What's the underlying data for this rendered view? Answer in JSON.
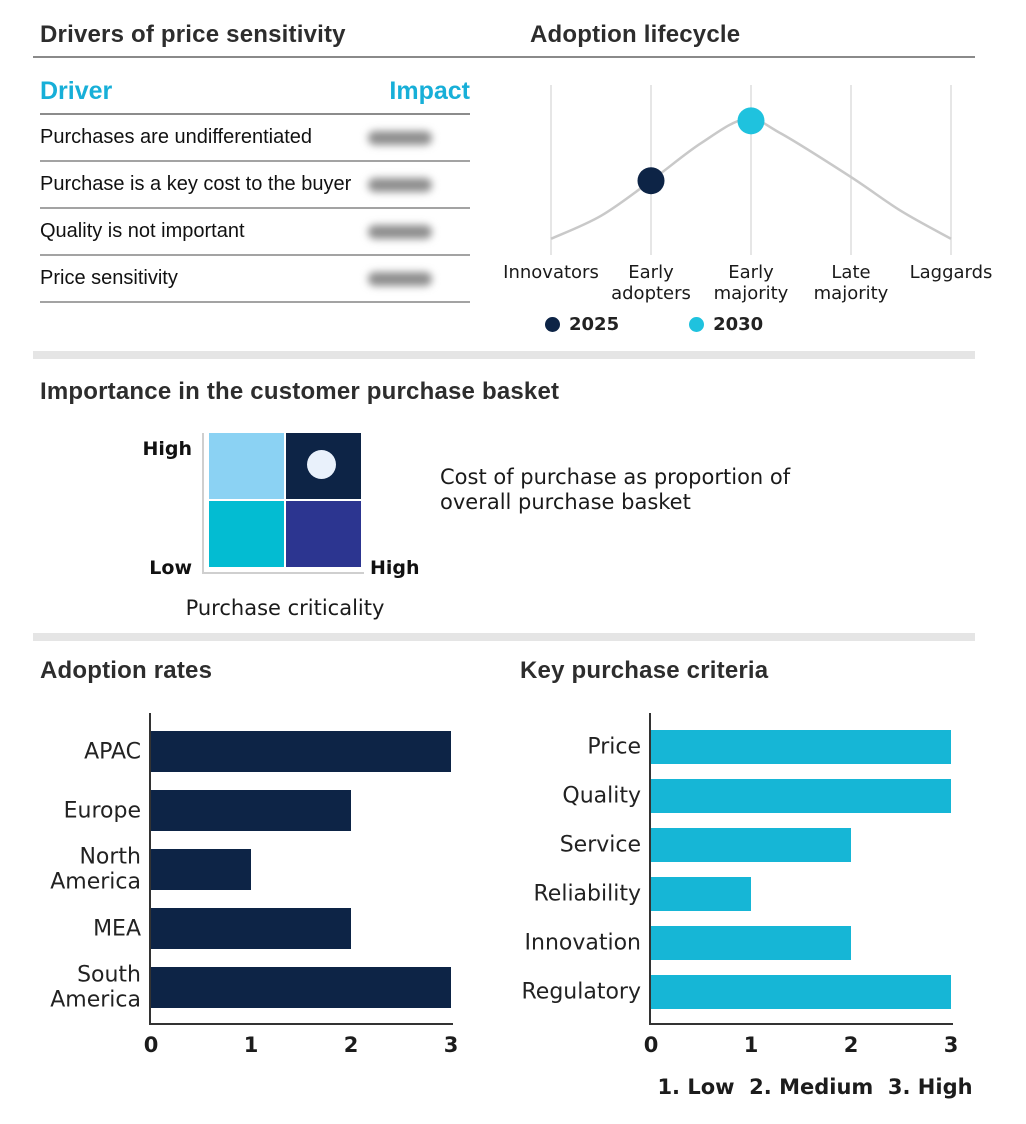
{
  "colors": {
    "navy": "#0d2446",
    "cyan": "#16b6d6",
    "cyan_dot": "#1fc2de",
    "accent_header": "#17afd8",
    "matrix_light_blue": "#8bd2f3",
    "matrix_teal": "#03bcd2",
    "matrix_indigo": "#2c3590",
    "matrix_marker": "#e9f1fb",
    "curve_gray": "#c9c9c9",
    "gridline_gray": "#dddddd",
    "divider_gray": "#e5e5e5",
    "title_text": "#2d2d2d"
  },
  "drivers_panel": {
    "title": "Drivers of price sensitivity",
    "columns": [
      "Driver",
      "Impact"
    ],
    "rows": [
      {
        "driver": "Purchases are undifferentiated",
        "impact": "",
        "impact_redacted": true
      },
      {
        "driver": "Purchase is a key cost to the buyer",
        "impact": "",
        "impact_redacted": true
      },
      {
        "driver": "Quality is not important",
        "impact": "",
        "impact_redacted": true
      },
      {
        "driver": "Price sensitivity",
        "impact": "",
        "impact_redacted": true
      }
    ]
  },
  "lifecycle_panel": {
    "title": "Adoption lifecycle",
    "legend": [
      {
        "label": "2025",
        "color": "#0d2446"
      },
      {
        "label": "2030",
        "color": "#1fc2de"
      }
    ]
  },
  "importance_panel": {
    "title": "Importance in the customer purchase basket",
    "y_axis_top": "High",
    "y_axis_bottom": "Low",
    "x_axis_right": "High",
    "x_axis_label": "Purchase criticality",
    "annotation": "Cost of purchase as proportion of overall purchase basket"
  },
  "adoption_panel": {
    "title": "Adoption rates"
  },
  "criteria_panel": {
    "title": "Key purchase criteria",
    "footnote": "1. Low  2. Medium  3. High"
  },
  "chart_data": [
    {
      "id": "lifecycle",
      "type": "line",
      "title": "Adoption lifecycle",
      "categories": [
        "Innovators",
        "Early adopters",
        "Early majority",
        "Late majority",
        "Laggards"
      ],
      "grid": "vertical gridline at each category",
      "legend_position": "bottom-left",
      "curve_points": [
        [
          0,
          1
        ],
        [
          0.5,
          20
        ],
        [
          1,
          49
        ],
        [
          1.5,
          80
        ],
        [
          1.95,
          100
        ],
        [
          2.3,
          88
        ],
        [
          3,
          52
        ],
        [
          3.5,
          24
        ],
        [
          4,
          1
        ]
      ],
      "markers": [
        {
          "series": "2025",
          "category_index": 1,
          "category": "Early adopters",
          "height_pct": 49,
          "color": "#0d2446"
        },
        {
          "series": "2030",
          "category_index": 2,
          "category": "Early majority",
          "height_pct": 98.5,
          "color": "#1fc2de"
        }
      ]
    },
    {
      "id": "importance-matrix",
      "type": "heatmap",
      "title": "Importance in the customer purchase basket",
      "x_axis": {
        "label": "Purchase criticality",
        "max_label": "High"
      },
      "y_axis": {
        "min_label": "Low",
        "max_label": "High"
      },
      "cells": [
        [
          "#8bd2f3",
          "#0d2446"
        ],
        [
          "#03bcd2",
          "#2c3590"
        ]
      ],
      "marker": {
        "quadrant": "top-right",
        "color": "#e9f1fb"
      },
      "annotation": "Cost of purchase as proportion of overall purchase basket"
    },
    {
      "id": "adoption-rates",
      "type": "bar",
      "orientation": "horizontal",
      "title": "Adoption rates",
      "categories": [
        "APAC",
        "Europe",
        "North America",
        "MEA",
        "South America"
      ],
      "values": [
        3,
        2,
        1,
        2,
        3
      ],
      "xlim": [
        0,
        3
      ],
      "xticks": [
        0,
        1,
        2,
        3
      ],
      "bar_color": "#0d2446",
      "grid": false
    },
    {
      "id": "key-purchase-criteria",
      "type": "bar",
      "orientation": "horizontal",
      "title": "Key purchase criteria",
      "categories": [
        "Price",
        "Quality",
        "Service",
        "Reliability",
        "Innovation",
        "Regulatory"
      ],
      "values": [
        3,
        3,
        2,
        1,
        2,
        3
      ],
      "xlim": [
        0,
        3
      ],
      "xticks": [
        0,
        1,
        2,
        3
      ],
      "bar_color": "#16b6d6",
      "grid": false,
      "scale_note": "1. Low  2. Medium  3. High"
    }
  ]
}
